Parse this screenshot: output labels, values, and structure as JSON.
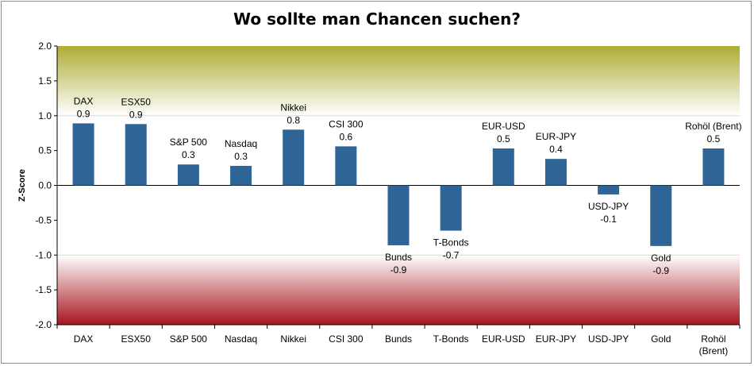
{
  "title": "Wo sollte man Chancen suchen?",
  "chart_data": {
    "type": "bar",
    "title": "Wo sollte man Chancen suchen?",
    "ylabel": "Z-Score",
    "xlabel": "",
    "ylim": [
      -2.0,
      2.0
    ],
    "yticks": [
      "2.0",
      "1.5",
      "1.0",
      "0.5",
      "0.0",
      "-0.5",
      "-1.0",
      "-1.5",
      "-2.0"
    ],
    "categories": [
      "DAX",
      "ESX50",
      "S&P 500",
      "Nasdaq",
      "Nikkei",
      "CSI 300",
      "Bunds",
      "T-Bonds",
      "EUR-USD",
      "EUR-JPY",
      "USD-JPY",
      "Gold",
      "Rohöl (Brent)"
    ],
    "values": [
      0.89,
      0.88,
      0.3,
      0.28,
      0.8,
      0.56,
      -0.86,
      -0.65,
      0.53,
      0.38,
      -0.13,
      -0.87,
      0.53
    ],
    "data_labels": [
      "0.9",
      "0.9",
      "0.3",
      "0.3",
      "0.8",
      "0.6",
      "-0.9",
      "-0.7",
      "0.5",
      "0.4",
      "-0.1",
      "-0.9",
      "0.5"
    ],
    "bar_color": "#2e6496",
    "bands": [
      {
        "from": 1.0,
        "to": 2.0,
        "color_top": "#adad35",
        "color_bottom": "#ffffff"
      },
      {
        "from": -2.0,
        "to": -1.0,
        "color_top": "#ffffff",
        "color_bottom": "#a8141d"
      }
    ],
    "grid": false,
    "legend": "none"
  }
}
